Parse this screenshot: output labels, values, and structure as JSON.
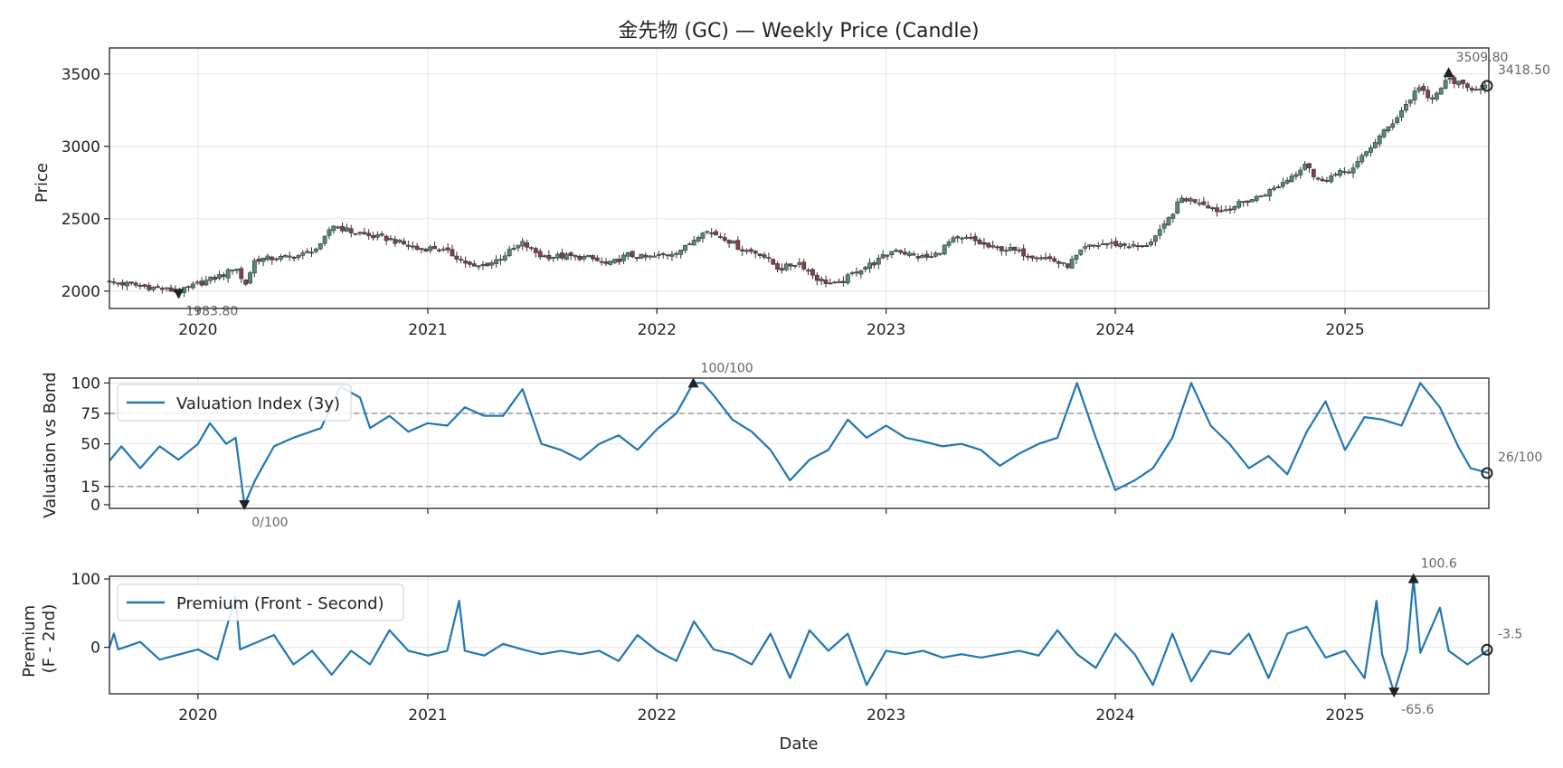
{
  "chart_data": [
    {
      "type": "candlestick",
      "title": "金先物 (GC) — Weekly Price (Candle)",
      "ylabel": "Price",
      "xlabel": "",
      "xlim": [
        "2019-08-13",
        "2025-08-18"
      ],
      "ylim": [
        1880,
        3680
      ],
      "yticks": [
        "2000",
        "2500",
        "3000",
        "3500"
      ],
      "xticks": [
        "2020",
        "2021",
        "2022",
        "2023",
        "2024",
        "2025"
      ],
      "grid": true,
      "close_points": [
        [
          "2019-08-13",
          2060
        ],
        [
          "2019-09-15",
          2045
        ],
        [
          "2019-10-20",
          2025
        ],
        [
          "2019-11-20",
          2005
        ],
        [
          "2019-12-01",
          1990
        ],
        [
          "2020-01-01",
          2050
        ],
        [
          "2020-02-15",
          2120
        ],
        [
          "2020-03-01",
          2180
        ],
        [
          "2020-03-15",
          2030
        ],
        [
          "2020-04-01",
          2220
        ],
        [
          "2020-05-15",
          2230
        ],
        [
          "2020-06-15",
          2250
        ],
        [
          "2020-07-15",
          2310
        ],
        [
          "2020-08-01",
          2460
        ],
        [
          "2020-09-01",
          2410
        ],
        [
          "2020-10-01",
          2380
        ],
        [
          "2020-11-01",
          2360
        ],
        [
          "2020-12-15",
          2290
        ],
        [
          "2021-01-15",
          2300
        ],
        [
          "2021-02-15",
          2240
        ],
        [
          "2021-03-15",
          2160
        ],
        [
          "2021-04-15",
          2200
        ],
        [
          "2021-06-01",
          2330
        ],
        [
          "2021-07-01",
          2240
        ],
        [
          "2021-08-15",
          2240
        ],
        [
          "2021-09-15",
          2230
        ],
        [
          "2021-10-15",
          2180
        ],
        [
          "2021-11-15",
          2250
        ],
        [
          "2021-12-15",
          2230
        ],
        [
          "2022-01-15",
          2250
        ],
        [
          "2022-02-15",
          2300
        ],
        [
          "2022-03-15",
          2420
        ],
        [
          "2022-04-15",
          2380
        ],
        [
          "2022-05-15",
          2290
        ],
        [
          "2022-06-15",
          2260
        ],
        [
          "2022-07-15",
          2150
        ],
        [
          "2022-08-15",
          2200
        ],
        [
          "2022-09-15",
          2080
        ],
        [
          "2022-10-15",
          2040
        ],
        [
          "2022-11-15",
          2140
        ],
        [
          "2022-12-15",
          2200
        ],
        [
          "2023-01-15",
          2290
        ],
        [
          "2023-02-15",
          2240
        ],
        [
          "2023-03-15",
          2230
        ],
        [
          "2023-04-15",
          2350
        ],
        [
          "2023-05-15",
          2360
        ],
        [
          "2023-06-15",
          2300
        ],
        [
          "2023-07-15",
          2290
        ],
        [
          "2023-08-15",
          2250
        ],
        [
          "2023-09-15",
          2230
        ],
        [
          "2023-10-15",
          2170
        ],
        [
          "2023-11-15",
          2300
        ],
        [
          "2023-12-15",
          2330
        ],
        [
          "2024-01-15",
          2320
        ],
        [
          "2024-02-15",
          2300
        ],
        [
          "2024-03-15",
          2420
        ],
        [
          "2024-04-15",
          2640
        ],
        [
          "2024-05-15",
          2620
        ],
        [
          "2024-06-15",
          2550
        ],
        [
          "2024-07-15",
          2600
        ],
        [
          "2024-08-15",
          2650
        ],
        [
          "2024-09-15",
          2720
        ],
        [
          "2024-10-15",
          2820
        ],
        [
          "2024-11-01",
          2900
        ],
        [
          "2024-11-15",
          2760
        ],
        [
          "2024-12-15",
          2800
        ],
        [
          "2025-01-15",
          2850
        ],
        [
          "2025-02-15",
          3020
        ],
        [
          "2025-03-15",
          3150
        ],
        [
          "2025-04-15",
          3330
        ],
        [
          "2025-05-01",
          3430
        ],
        [
          "2025-05-15",
          3300
        ],
        [
          "2025-06-15",
          3470
        ],
        [
          "2025-07-15",
          3400
        ],
        [
          "2025-08-18",
          3418.5
        ]
      ],
      "annotations": [
        {
          "label": "1983.80",
          "date": "2019-12-01",
          "value": 1983.8,
          "marker": "down"
        },
        {
          "label": "3509.80",
          "date": "2025-06-15",
          "value": 3509.8,
          "marker": "up"
        },
        {
          "label": "3418.50",
          "date": "2025-08-18",
          "value": 3418.5,
          "marker": "last"
        }
      ]
    },
    {
      "type": "line",
      "ylabel": "Valuation vs Bond",
      "xlim": [
        "2019-08-13",
        "2025-08-18"
      ],
      "ylim": [
        -3,
        104
      ],
      "yticks": [
        "0",
        "15",
        "50",
        "75",
        "100"
      ],
      "reference_lines": [
        75,
        15
      ],
      "legend": "top-left",
      "series": [
        {
          "name": "Valuation Index (3y)",
          "points": [
            [
              "2019-08-13",
              36
            ],
            [
              "2019-09-01",
              48
            ],
            [
              "2019-10-01",
              30
            ],
            [
              "2019-11-01",
              48
            ],
            [
              "2019-12-01",
              37
            ],
            [
              "2020-01-01",
              50
            ],
            [
              "2020-01-20",
              67
            ],
            [
              "2020-02-15",
              50
            ],
            [
              "2020-03-01",
              55
            ],
            [
              "2020-03-15",
              0
            ],
            [
              "2020-04-01",
              20
            ],
            [
              "2020-05-01",
              48
            ],
            [
              "2020-06-01",
              55
            ],
            [
              "2020-07-15",
              63
            ],
            [
              "2020-08-15",
              97
            ],
            [
              "2020-09-15",
              88
            ],
            [
              "2020-10-01",
              63
            ],
            [
              "2020-11-01",
              73
            ],
            [
              "2020-12-01",
              60
            ],
            [
              "2021-01-01",
              67
            ],
            [
              "2021-02-01",
              65
            ],
            [
              "2021-03-01",
              80
            ],
            [
              "2021-04-01",
              73
            ],
            [
              "2021-05-01",
              73
            ],
            [
              "2021-06-01",
              95
            ],
            [
              "2021-07-01",
              50
            ],
            [
              "2021-08-01",
              45
            ],
            [
              "2021-09-01",
              37
            ],
            [
              "2021-10-01",
              50
            ],
            [
              "2021-11-01",
              57
            ],
            [
              "2021-12-01",
              45
            ],
            [
              "2022-01-01",
              62
            ],
            [
              "2022-02-01",
              75
            ],
            [
              "2022-02-28",
              100
            ],
            [
              "2022-03-15",
              100
            ],
            [
              "2022-04-01",
              90
            ],
            [
              "2022-05-01",
              70
            ],
            [
              "2022-06-01",
              60
            ],
            [
              "2022-07-01",
              45
            ],
            [
              "2022-08-01",
              20
            ],
            [
              "2022-09-01",
              37
            ],
            [
              "2022-10-01",
              45
            ],
            [
              "2022-11-01",
              70
            ],
            [
              "2022-12-01",
              55
            ],
            [
              "2023-01-01",
              65
            ],
            [
              "2023-02-01",
              55
            ],
            [
              "2023-03-01",
              52
            ],
            [
              "2023-04-01",
              48
            ],
            [
              "2023-05-01",
              50
            ],
            [
              "2023-06-01",
              45
            ],
            [
              "2023-07-01",
              32
            ],
            [
              "2023-08-01",
              42
            ],
            [
              "2023-09-01",
              50
            ],
            [
              "2023-10-01",
              55
            ],
            [
              "2023-11-01",
              100
            ],
            [
              "2023-12-01",
              55
            ],
            [
              "2024-01-01",
              12
            ],
            [
              "2024-02-01",
              20
            ],
            [
              "2024-03-01",
              30
            ],
            [
              "2024-04-01",
              55
            ],
            [
              "2024-05-01",
              100
            ],
            [
              "2024-06-01",
              65
            ],
            [
              "2024-07-01",
              50
            ],
            [
              "2024-08-01",
              30
            ],
            [
              "2024-09-01",
              40
            ],
            [
              "2024-10-01",
              25
            ],
            [
              "2024-11-01",
              60
            ],
            [
              "2024-12-01",
              85
            ],
            [
              "2025-01-01",
              45
            ],
            [
              "2025-02-01",
              72
            ],
            [
              "2025-03-01",
              70
            ],
            [
              "2025-04-01",
              65
            ],
            [
              "2025-05-01",
              100
            ],
            [
              "2025-06-01",
              80
            ],
            [
              "2025-07-01",
              47
            ],
            [
              "2025-07-20",
              30
            ],
            [
              "2025-08-18",
              26
            ]
          ]
        }
      ],
      "annotations": [
        {
          "label": "0/100",
          "date": "2020-03-15",
          "value": 0,
          "marker": "down"
        },
        {
          "label": "100/100",
          "date": "2022-02-28",
          "value": 100,
          "marker": "up"
        },
        {
          "label": "26/100",
          "date": "2025-08-18",
          "value": 26,
          "marker": "last"
        }
      ]
    },
    {
      "type": "line",
      "ylabel": "Premium\n(F - 2nd)",
      "xlabel": "Date",
      "xlim": [
        "2019-08-13",
        "2025-08-18"
      ],
      "ylim": [
        -68,
        104
      ],
      "yticks": [
        "0",
        "100"
      ],
      "xticks": [
        "2020",
        "2021",
        "2022",
        "2023",
        "2024",
        "2025"
      ],
      "legend": "top-left",
      "series": [
        {
          "name": "Premium (Front - Second)",
          "points": [
            [
              "2019-08-13",
              0
            ],
            [
              "2019-08-20",
              20
            ],
            [
              "2019-08-27",
              -3
            ],
            [
              "2019-10-01",
              8
            ],
            [
              "2019-11-01",
              -18
            ],
            [
              "2020-01-01",
              -3
            ],
            [
              "2020-02-01",
              -18
            ],
            [
              "2020-03-01",
              75
            ],
            [
              "2020-03-08",
              -3
            ],
            [
              "2020-05-01",
              18
            ],
            [
              "2020-06-01",
              -25
            ],
            [
              "2020-07-01",
              -5
            ],
            [
              "2020-08-01",
              -40
            ],
            [
              "2020-09-01",
              -5
            ],
            [
              "2020-10-01",
              -25
            ],
            [
              "2020-11-01",
              25
            ],
            [
              "2020-12-01",
              -5
            ],
            [
              "2021-01-01",
              -12
            ],
            [
              "2021-02-01",
              -5
            ],
            [
              "2021-02-20",
              68
            ],
            [
              "2021-03-01",
              -5
            ],
            [
              "2021-04-01",
              -12
            ],
            [
              "2021-05-01",
              5
            ],
            [
              "2021-06-01",
              -3
            ],
            [
              "2021-07-01",
              -10
            ],
            [
              "2021-08-01",
              -5
            ],
            [
              "2021-09-01",
              -10
            ],
            [
              "2021-10-01",
              -5
            ],
            [
              "2021-11-01",
              -20
            ],
            [
              "2021-12-01",
              18
            ],
            [
              "2022-01-01",
              -5
            ],
            [
              "2022-02-01",
              -20
            ],
            [
              "2022-03-01",
              38
            ],
            [
              "2022-04-01",
              -3
            ],
            [
              "2022-05-01",
              -10
            ],
            [
              "2022-06-01",
              -25
            ],
            [
              "2022-07-01",
              20
            ],
            [
              "2022-08-01",
              -45
            ],
            [
              "2022-09-01",
              25
            ],
            [
              "2022-10-01",
              -5
            ],
            [
              "2022-11-01",
              20
            ],
            [
              "2022-12-01",
              -55
            ],
            [
              "2023-01-01",
              -5
            ],
            [
              "2023-02-01",
              -10
            ],
            [
              "2023-03-01",
              -5
            ],
            [
              "2023-04-01",
              -15
            ],
            [
              "2023-05-01",
              -10
            ],
            [
              "2023-06-01",
              -15
            ],
            [
              "2023-07-01",
              -10
            ],
            [
              "2023-08-01",
              -5
            ],
            [
              "2023-09-01",
              -12
            ],
            [
              "2023-10-01",
              25
            ],
            [
              "2023-11-01",
              -10
            ],
            [
              "2023-12-01",
              -30
            ],
            [
              "2024-01-01",
              20
            ],
            [
              "2024-02-01",
              -10
            ],
            [
              "2024-03-01",
              -55
            ],
            [
              "2024-04-01",
              20
            ],
            [
              "2024-05-01",
              -50
            ],
            [
              "2024-06-01",
              -5
            ],
            [
              "2024-07-01",
              -10
            ],
            [
              "2024-08-01",
              20
            ],
            [
              "2024-09-01",
              -45
            ],
            [
              "2024-10-01",
              20
            ],
            [
              "2024-11-01",
              30
            ],
            [
              "2024-12-01",
              -15
            ],
            [
              "2025-01-01",
              -5
            ],
            [
              "2025-02-01",
              -45
            ],
            [
              "2025-02-20",
              68
            ],
            [
              "2025-03-01",
              -10
            ],
            [
              "2025-03-20",
              -65.6
            ],
            [
              "2025-04-10",
              -3
            ],
            [
              "2025-04-20",
              100.6
            ],
            [
              "2025-05-01",
              -8
            ],
            [
              "2025-06-01",
              58
            ],
            [
              "2025-06-15",
              -5
            ],
            [
              "2025-07-15",
              -25
            ],
            [
              "2025-08-18",
              -3.5
            ]
          ]
        }
      ],
      "annotations": [
        {
          "label": "100.6",
          "date": "2025-04-20",
          "value": 100.6,
          "marker": "up"
        },
        {
          "label": "-65.6",
          "date": "2025-03-20",
          "value": -65.6,
          "marker": "down"
        },
        {
          "label": "-3.5",
          "date": "2025-08-18",
          "value": -3.5,
          "marker": "last"
        }
      ]
    }
  ],
  "colors": {
    "line": "#1f77b4",
    "candle_up": "#4f8c7a",
    "candle_down": "#8a3d45",
    "marker": "#222222",
    "annotation": "#666666"
  }
}
